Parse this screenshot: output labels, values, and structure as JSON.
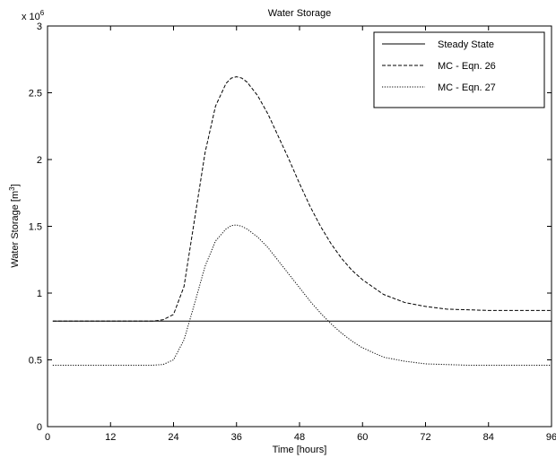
{
  "chart_data": {
    "type": "line",
    "title": "Water Storage",
    "xlabel": "Time [hours]",
    "ylabel_main": "Water Storage [m",
    "ylabel_sup": "3",
    "ylabel_close": "]",
    "y_multiplier_base": "x 10",
    "y_multiplier_exp": "6",
    "xlim": [
      0,
      96
    ],
    "ylim": [
      0,
      3
    ],
    "x_ticks": [
      0,
      12,
      24,
      36,
      48,
      60,
      72,
      84,
      96
    ],
    "x_tick_labels": [
      "0",
      "12",
      "24",
      "36",
      "48",
      "60",
      "72",
      "84",
      "96"
    ],
    "y_ticks": [
      0,
      0.5,
      1,
      1.5,
      2,
      2.5,
      3
    ],
    "y_tick_labels": [
      "0",
      "0.5",
      "1",
      "1.5",
      "2",
      "2.5",
      "3"
    ],
    "grid": false,
    "legend_position": "top-right",
    "series": [
      {
        "name": "Steady State",
        "style": "solid",
        "x": [
          1,
          96
        ],
        "y": [
          0.79,
          0.79
        ]
      },
      {
        "name": "MC - Eqn. 26",
        "style": "dashed",
        "x": [
          1,
          12,
          20,
          22,
          24,
          26,
          28,
          30,
          32,
          34,
          35,
          36,
          37,
          38,
          40,
          42,
          44,
          46,
          48,
          50,
          52,
          54,
          56,
          58,
          60,
          64,
          68,
          72,
          76,
          80,
          84,
          88,
          92,
          96
        ],
        "y": [
          0.79,
          0.79,
          0.79,
          0.8,
          0.84,
          1.05,
          1.55,
          2.05,
          2.4,
          2.57,
          2.61,
          2.62,
          2.61,
          2.58,
          2.48,
          2.34,
          2.17,
          2.0,
          1.82,
          1.65,
          1.5,
          1.37,
          1.26,
          1.17,
          1.1,
          0.99,
          0.93,
          0.9,
          0.88,
          0.875,
          0.87,
          0.87,
          0.87,
          0.87
        ]
      },
      {
        "name": "MC - Eqn. 27",
        "style": "dotted",
        "x": [
          1,
          12,
          20,
          22,
          24,
          26,
          28,
          30,
          32,
          34,
          35,
          36,
          37,
          38,
          40,
          42,
          44,
          46,
          48,
          50,
          52,
          54,
          56,
          58,
          60,
          64,
          68,
          72,
          76,
          80,
          84,
          88,
          92,
          96
        ],
        "y": [
          0.46,
          0.46,
          0.46,
          0.465,
          0.5,
          0.65,
          0.92,
          1.2,
          1.39,
          1.48,
          1.505,
          1.51,
          1.5,
          1.48,
          1.42,
          1.34,
          1.24,
          1.14,
          1.04,
          0.94,
          0.85,
          0.77,
          0.7,
          0.64,
          0.59,
          0.52,
          0.49,
          0.47,
          0.465,
          0.46,
          0.46,
          0.46,
          0.46,
          0.46
        ]
      }
    ]
  }
}
